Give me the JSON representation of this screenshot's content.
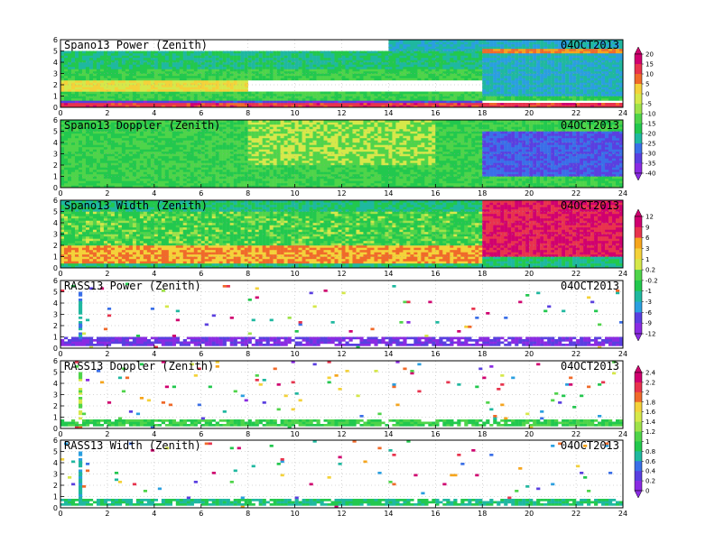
{
  "chart_data": {
    "type": "heatmap",
    "date": "04OCT2013",
    "x_range": [
      0,
      24
    ],
    "x_ticks": [
      0,
      2,
      4,
      6,
      8,
      10,
      12,
      14,
      16,
      18,
      20,
      22,
      24
    ],
    "y_range": [
      0,
      6
    ],
    "y_ticks": [
      0,
      1,
      2,
      3,
      4,
      5,
      6
    ],
    "panels": [
      {
        "title": "Spano13 Power (Zenith)",
        "date": "04OCT2013",
        "kind": "spano-power",
        "colorbar": "power",
        "layers": [
          {
            "y0": 0.0,
            "y1": 0.4,
            "value": 12,
            "x0": 0,
            "x1": 24
          },
          {
            "y0": 0.4,
            "y1": 0.6,
            "value": -38,
            "x0": 0,
            "x1": 18
          },
          {
            "y0": 0.6,
            "y1": 1.5,
            "value": -15,
            "x0": 0,
            "x1": 24
          },
          {
            "y0": 1.5,
            "y1": 2.5,
            "value": -5,
            "x0": 0,
            "x1": 8
          },
          {
            "y0": 2.5,
            "y1": 3.5,
            "value": -15,
            "x0": 0,
            "x1": 18
          },
          {
            "y0": 3.5,
            "y1": 5.0,
            "value": -20,
            "x0": 0,
            "x1": 18
          },
          {
            "y0": 5.0,
            "y1": 6.0,
            "value": -25,
            "x0": 14,
            "x1": 18
          },
          {
            "y0": 1.0,
            "y1": 6.0,
            "value": -25,
            "x0": 18,
            "x1": 24
          },
          {
            "y0": 4.8,
            "y1": 5.2,
            "value": 5,
            "x0": 18,
            "x1": 24
          }
        ]
      },
      {
        "title": "Spano13 Doppler (Zenith)",
        "date": "04OCT2013",
        "kind": "spano-doppler",
        "colorbar": "power",
        "layers": [
          {
            "y0": 0.0,
            "y1": 6.0,
            "value": -15,
            "x0": 0,
            "x1": 24
          },
          {
            "y0": 2.0,
            "y1": 6.0,
            "value": -10,
            "x0": 8,
            "x1": 16
          },
          {
            "y0": 1.0,
            "y1": 5.0,
            "value": -35,
            "x0": 18,
            "x1": 24
          }
        ]
      },
      {
        "title": "Spano13 Width (Zenith)",
        "date": "04OCT2013",
        "kind": "spano-width",
        "colorbar": "width",
        "layers": [
          {
            "y0": 0.0,
            "y1": 6.0,
            "value": -3,
            "x0": 0,
            "x1": 24
          },
          {
            "y0": 0.5,
            "y1": 2.0,
            "value": 3,
            "x0": 0,
            "x1": 18
          },
          {
            "y0": 2.0,
            "y1": 5.0,
            "value": -1,
            "x0": 0,
            "x1": 18
          },
          {
            "y0": 1.0,
            "y1": 6.0,
            "value": 9,
            "x0": 18,
            "x1": 24
          }
        ]
      },
      {
        "title": "RASS13 Power (Zenith)",
        "date": "04OCT2013",
        "kind": "rass-power",
        "colorbar": "width",
        "layers": [
          {
            "y0": 0.3,
            "y1": 1.0,
            "value": -12,
            "x0": 0,
            "x1": 24
          },
          {
            "y0": 0.8,
            "y1": 5.0,
            "value": -6,
            "x0": 0.7,
            "x1": 0.9
          }
        ]
      },
      {
        "title": "RASS13 Doppler (Zenith)",
        "date": "04OCT2013",
        "kind": "rass-doppler",
        "colorbar": "velocity",
        "layers": [
          {
            "y0": 0.3,
            "y1": 0.8,
            "value": 1.0,
            "x0": 0,
            "x1": 24
          },
          {
            "y0": 0.8,
            "y1": 5.0,
            "value": 1.2,
            "x0": 0.7,
            "x1": 0.9
          }
        ]
      },
      {
        "title": "RASS13 Width (Zenith)",
        "date": "04OCT2013",
        "kind": "rass-width",
        "colorbar": "velocity",
        "layers": [
          {
            "y0": 0.3,
            "y1": 0.8,
            "value": 0.8,
            "x0": 0,
            "x1": 24
          },
          {
            "y0": 0.8,
            "y1": 5.0,
            "value": 0.6,
            "x0": 0.7,
            "x1": 0.9
          }
        ]
      }
    ],
    "colorbars": {
      "power": {
        "labels": [
          "20",
          "15",
          "10",
          "5",
          "0",
          "-5",
          "-10",
          "-15",
          "-20",
          "-25",
          "-30",
          "-35",
          "-40"
        ],
        "values": [
          20,
          15,
          10,
          5,
          0,
          -5,
          -10,
          -15,
          -20,
          -25,
          -30,
          -35,
          -40
        ]
      },
      "width": {
        "labels": [
          "12",
          "9",
          "6",
          "3",
          "1",
          "0.2",
          "-0.2",
          "-1",
          "-3",
          "-6",
          "-9",
          "-12"
        ],
        "values": [
          12,
          9,
          6,
          3,
          1,
          0.2,
          -0.2,
          -1,
          -3,
          -6,
          -9,
          -12
        ]
      },
      "velocity": {
        "labels": [
          "2.4",
          "2.2",
          "2",
          "1.8",
          "1.6",
          "1.4",
          "1.2",
          "1",
          "0.8",
          "0.6",
          "0.4",
          "0.2",
          "0"
        ],
        "values": [
          2.4,
          2.2,
          2.0,
          1.8,
          1.6,
          1.4,
          1.2,
          1.0,
          0.8,
          0.6,
          0.4,
          0.2,
          0.0
        ]
      }
    },
    "palette": [
      "#d0006f",
      "#e8334d",
      "#f06a2a",
      "#f6a51c",
      "#f4d23a",
      "#d6e84a",
      "#9fe24a",
      "#4fd44a",
      "#22c84e",
      "#1fb8a0",
      "#2a9fe0",
      "#3a6fe8",
      "#5a3fe0",
      "#8a2be2"
    ]
  }
}
